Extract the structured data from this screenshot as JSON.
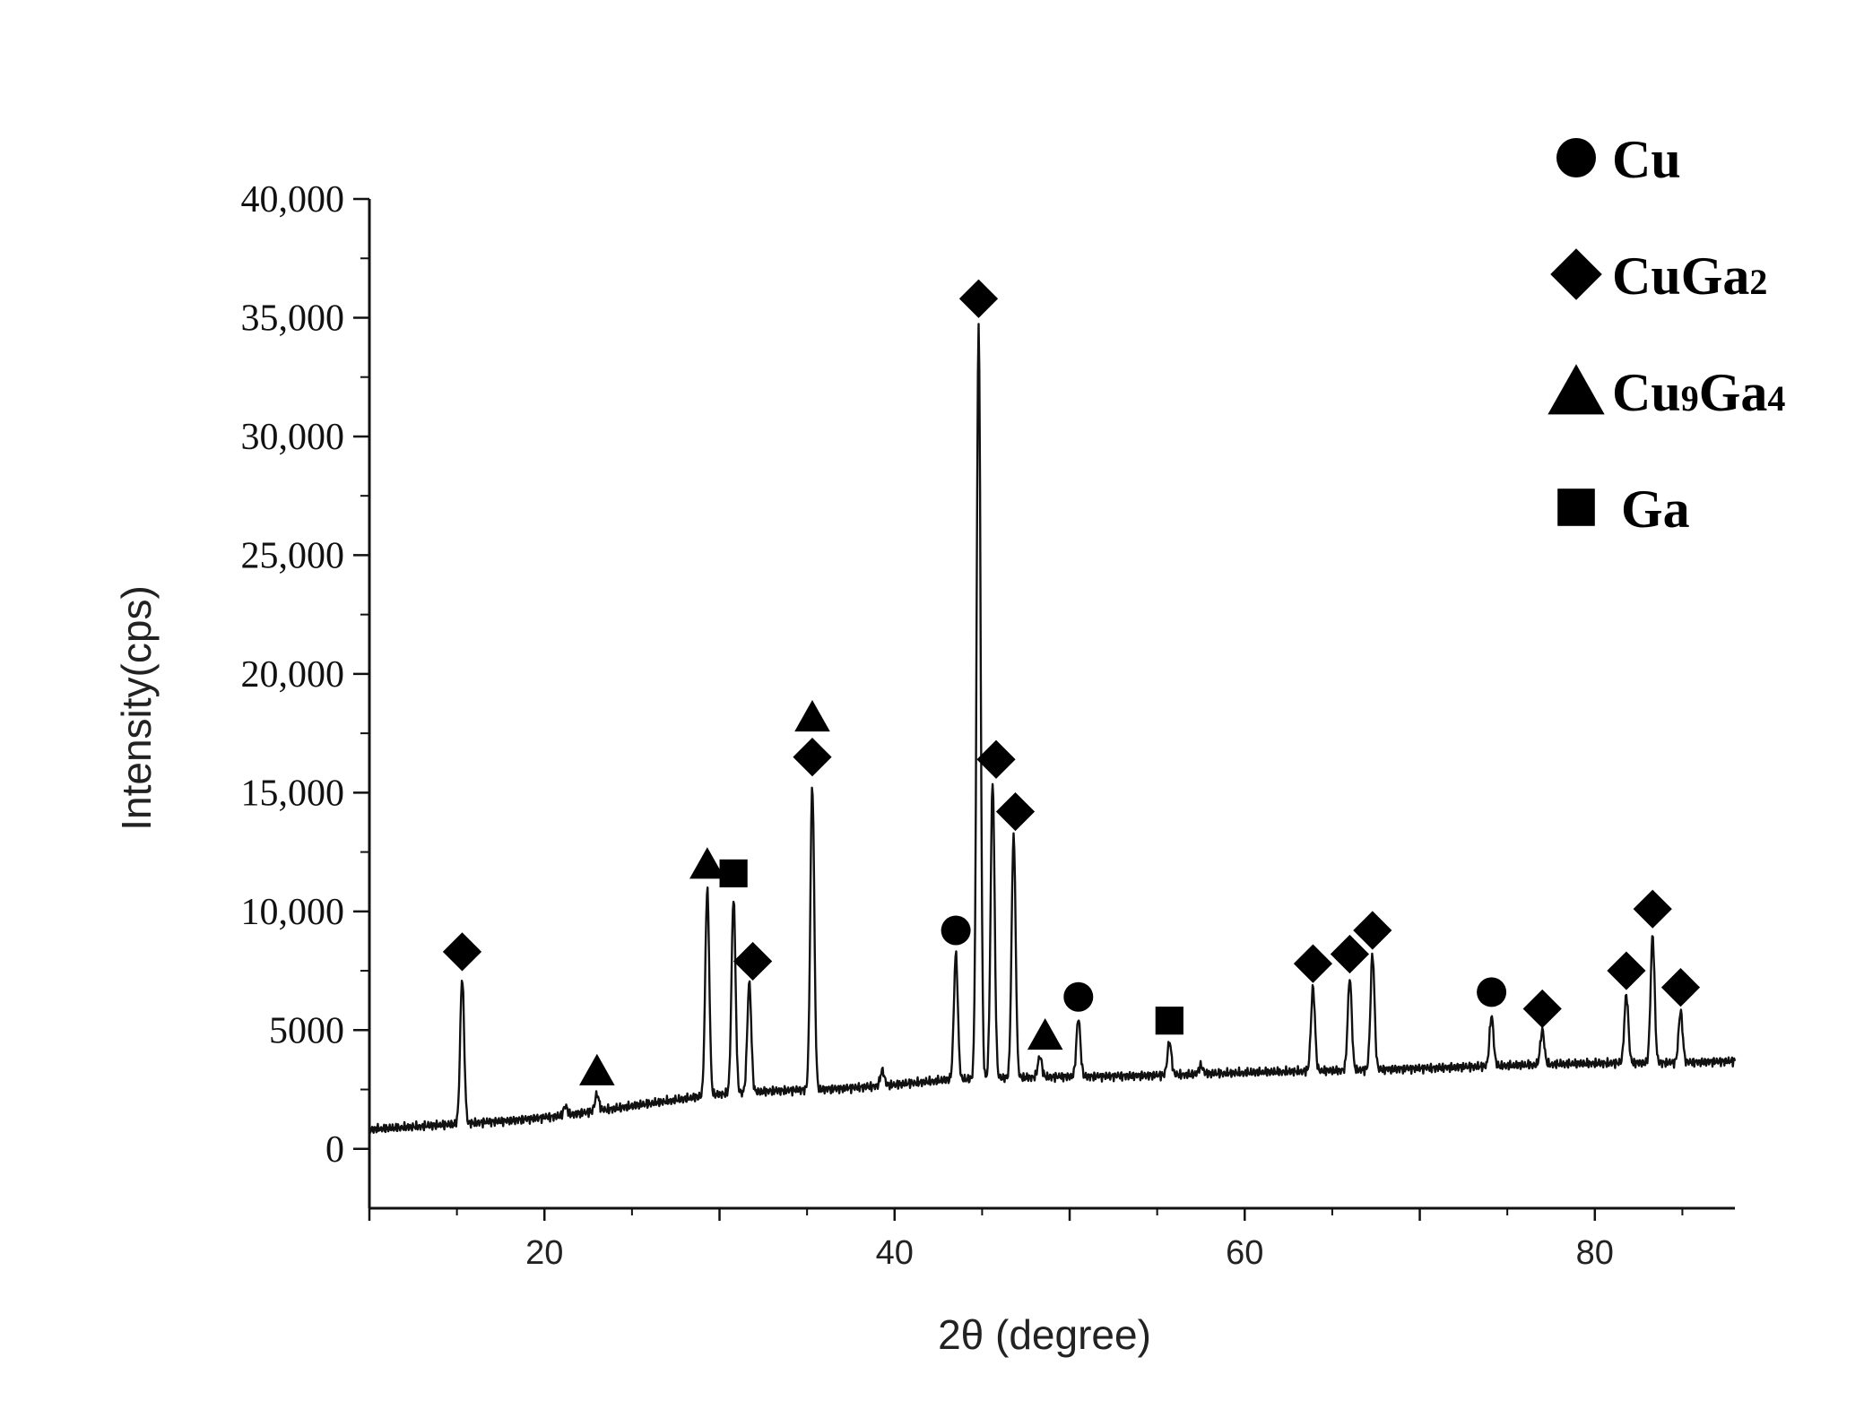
{
  "chart_data": {
    "type": "line",
    "xlabel": "2θ (degree)",
    "ylabel": "Intensity(cps)",
    "xlim": [
      10,
      88
    ],
    "ylim": [
      -2500,
      40000
    ],
    "x_ticks": [
      20,
      40,
      60,
      80
    ],
    "x_tick_labels": [
      "20",
      "40",
      "60",
      "80"
    ],
    "y_ticks": [
      0,
      5000,
      10000,
      15000,
      20000,
      25000,
      30000,
      35000,
      40000
    ],
    "y_tick_labels": [
      "0",
      "5000",
      "10,000",
      "15,000",
      "20,000",
      "25,000",
      "30,000",
      "35,000",
      "40,000"
    ],
    "grid": false,
    "legend_position": "top-right",
    "line_color": "#111111",
    "marker_color": "#000000",
    "background_points": [
      {
        "x": 10,
        "y": 800
      },
      {
        "x": 14,
        "y": 1000
      },
      {
        "x": 18,
        "y": 1200
      },
      {
        "x": 21,
        "y": 1400
      },
      {
        "x": 24,
        "y": 1700
      },
      {
        "x": 27,
        "y": 2000
      },
      {
        "x": 30,
        "y": 2300
      },
      {
        "x": 33,
        "y": 2450
      },
      {
        "x": 37,
        "y": 2550
      },
      {
        "x": 40,
        "y": 2700
      },
      {
        "x": 43,
        "y": 2900
      },
      {
        "x": 47,
        "y": 3000
      },
      {
        "x": 50,
        "y": 3050
      },
      {
        "x": 55,
        "y": 3100
      },
      {
        "x": 60,
        "y": 3200
      },
      {
        "x": 65,
        "y": 3300
      },
      {
        "x": 70,
        "y": 3400
      },
      {
        "x": 75,
        "y": 3500
      },
      {
        "x": 80,
        "y": 3600
      },
      {
        "x": 85,
        "y": 3650
      },
      {
        "x": 88,
        "y": 3700
      }
    ],
    "peaks": [
      {
        "x": 15.3,
        "y": 7200,
        "phase": "CuGa2"
      },
      {
        "x": 21.2,
        "y": 1800,
        "phase": ""
      },
      {
        "x": 23.0,
        "y": 2300,
        "phase": "Cu9Ga4"
      },
      {
        "x": 29.3,
        "y": 11000,
        "phase": "Cu9Ga4"
      },
      {
        "x": 30.8,
        "y": 10600,
        "phase": "Ga"
      },
      {
        "x": 31.7,
        "y": 7000,
        "phase": "CuGa2"
      },
      {
        "x": 35.3,
        "y": 15300,
        "phase": "CuGa2"
      },
      {
        "x": 39.3,
        "y": 3300,
        "phase": ""
      },
      {
        "x": 43.5,
        "y": 8200,
        "phase": "Cu"
      },
      {
        "x": 44.8,
        "y": 34700,
        "phase": "CuGa2"
      },
      {
        "x": 45.6,
        "y": 15500,
        "phase": "CuGa2"
      },
      {
        "x": 46.8,
        "y": 13300,
        "phase": "CuGa2"
      },
      {
        "x": 48.3,
        "y": 3900,
        "phase": "Cu9Ga4"
      },
      {
        "x": 50.5,
        "y": 5500,
        "phase": "Cu"
      },
      {
        "x": 55.7,
        "y": 4500,
        "phase": "Ga"
      },
      {
        "x": 57.5,
        "y": 3500,
        "phase": ""
      },
      {
        "x": 63.9,
        "y": 6800,
        "phase": "CuGa2"
      },
      {
        "x": 66.0,
        "y": 7200,
        "phase": "CuGa2"
      },
      {
        "x": 67.3,
        "y": 8200,
        "phase": "CuGa2"
      },
      {
        "x": 74.1,
        "y": 5600,
        "phase": "Cu"
      },
      {
        "x": 77.0,
        "y": 5000,
        "phase": "CuGa2"
      },
      {
        "x": 81.8,
        "y": 6500,
        "phase": "CuGa2"
      },
      {
        "x": 83.3,
        "y": 9000,
        "phase": "CuGa2"
      },
      {
        "x": 84.9,
        "y": 5800,
        "phase": "CuGa2"
      }
    ],
    "phase_markers": [
      {
        "phase": "CuGa2",
        "x": 15.3,
        "y": 8300
      },
      {
        "phase": "Cu9Ga4",
        "x": 23.0,
        "y": 3300
      },
      {
        "phase": "Cu9Ga4",
        "x": 29.3,
        "y": 12000
      },
      {
        "phase": "Ga",
        "x": 30.8,
        "y": 11600
      },
      {
        "phase": "CuGa2",
        "x": 31.9,
        "y": 7900
      },
      {
        "phase": "Cu9Ga4",
        "x": 35.3,
        "y": 18200
      },
      {
        "phase": "CuGa2",
        "x": 35.3,
        "y": 16500
      },
      {
        "phase": "Cu",
        "x": 43.5,
        "y": 9200
      },
      {
        "phase": "CuGa2",
        "x": 44.8,
        "y": 35800
      },
      {
        "phase": "CuGa2",
        "x": 45.8,
        "y": 16400
      },
      {
        "phase": "CuGa2",
        "x": 46.9,
        "y": 14200
      },
      {
        "phase": "Cu9Ga4",
        "x": 48.6,
        "y": 4800
      },
      {
        "phase": "Cu",
        "x": 50.5,
        "y": 6400
      },
      {
        "phase": "Ga",
        "x": 55.7,
        "y": 5400
      },
      {
        "phase": "CuGa2",
        "x": 63.9,
        "y": 7800
      },
      {
        "phase": "CuGa2",
        "x": 66.0,
        "y": 8200
      },
      {
        "phase": "CuGa2",
        "x": 67.3,
        "y": 9200
      },
      {
        "phase": "Cu",
        "x": 74.1,
        "y": 6600
      },
      {
        "phase": "CuGa2",
        "x": 77.0,
        "y": 5900
      },
      {
        "phase": "CuGa2",
        "x": 81.8,
        "y": 7500
      },
      {
        "phase": "CuGa2",
        "x": 83.3,
        "y": 10100
      },
      {
        "phase": "CuGa2",
        "x": 84.9,
        "y": 6800
      }
    ],
    "legend": [
      {
        "phase": "Cu",
        "marker": "circle",
        "text": "Cu",
        "sub1": "",
        "mid": "",
        "sub2": ""
      },
      {
        "phase": "CuGa2",
        "marker": "diamond",
        "text": "CuGa",
        "sub1": "2",
        "mid": "",
        "sub2": ""
      },
      {
        "phase": "Cu9Ga4",
        "marker": "triangle",
        "text": "Cu",
        "sub1": "9",
        "mid": "Ga",
        "sub2": "4"
      },
      {
        "phase": "Ga",
        "marker": "square",
        "text": "Ga",
        "sub1": "",
        "mid": "",
        "sub2": ""
      }
    ]
  }
}
